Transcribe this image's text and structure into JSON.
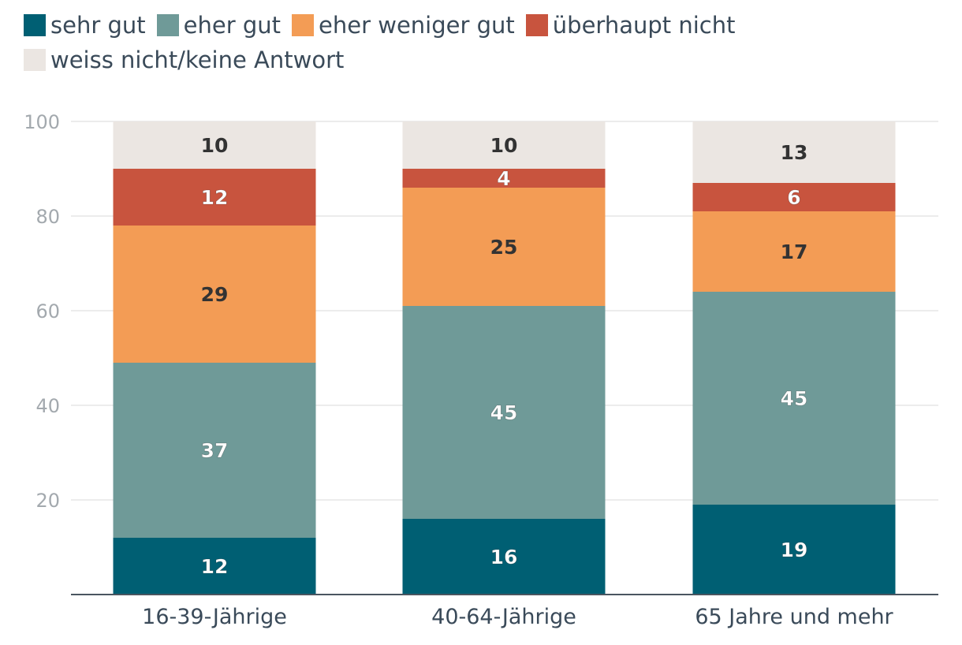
{
  "chart_data": {
    "type": "bar",
    "stacked": true,
    "categories": [
      "16-39-Jährige",
      "40-64-Jährige",
      "65 Jahre und mehr"
    ],
    "series": [
      {
        "name": "sehr gut",
        "color": "#005f73",
        "values": [
          12,
          16,
          19
        ]
      },
      {
        "name": "eher gut",
        "color": "#6f9a98",
        "values": [
          37,
          45,
          45
        ]
      },
      {
        "name": "eher weniger gut",
        "color": "#f39c55",
        "values": [
          29,
          25,
          17
        ]
      },
      {
        "name": "überhaupt nicht",
        "color": "#c8543e",
        "values": [
          12,
          4,
          6
        ]
      },
      {
        "name": "weiss nicht/keine Antwort",
        "color": "#ebe6e2",
        "values": [
          10,
          10,
          13
        ]
      }
    ],
    "ylim": [
      0,
      100
    ],
    "yticks": [
      20,
      40,
      60,
      80,
      100
    ],
    "grid": true,
    "legend": "top"
  }
}
